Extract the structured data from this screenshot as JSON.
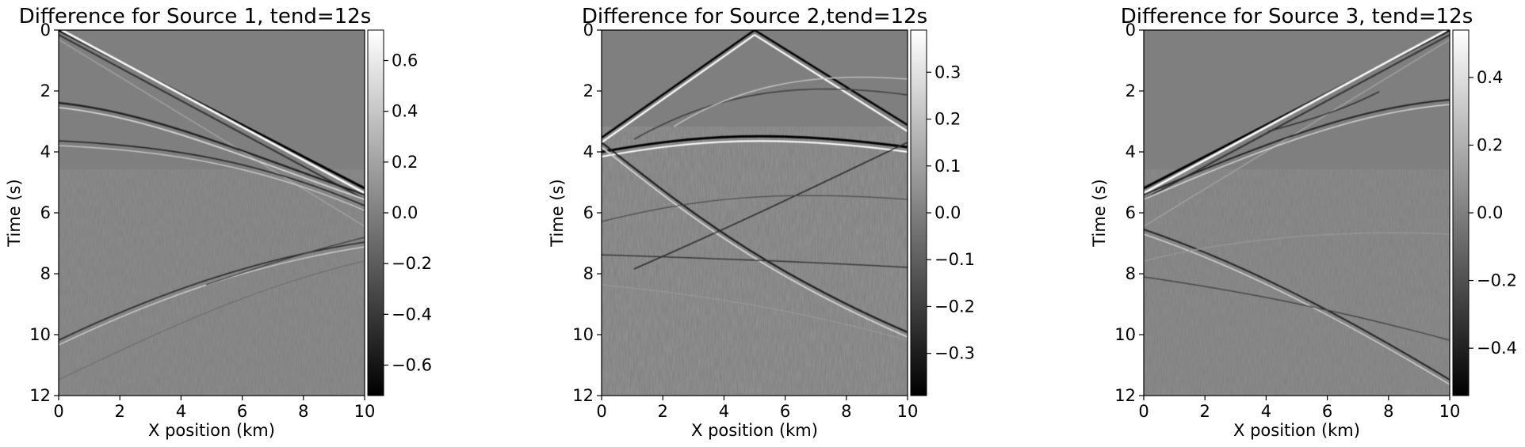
{
  "chart_data": [
    {
      "type": "heatmap",
      "title": "Difference for Source 1, tend=12s",
      "xlabel": "X position (km)",
      "ylabel": "Time (s)",
      "xlim": [
        0,
        10
      ],
      "ylim": [
        12,
        0
      ],
      "xticks": [
        0,
        2,
        4,
        6,
        8,
        10
      ],
      "yticks": [
        0,
        2,
        4,
        6,
        8,
        10,
        12
      ],
      "colormap": "gray",
      "colorbar": {
        "vmin": -0.72,
        "vmax": 0.72,
        "ticks": [
          -0.6,
          -0.4,
          -0.2,
          0.0,
          0.2,
          0.4,
          0.6
        ],
        "tick_labels": [
          "−0.6",
          "−0.4",
          "−0.2",
          "0.0",
          "0.2",
          "0.4",
          "0.6"
        ]
      },
      "source_position_km": 0
    },
    {
      "type": "heatmap",
      "title": "Difference for Source 2,tend=12s",
      "xlabel": "X position (km)",
      "ylabel": "Time (s)",
      "xlim": [
        0,
        10
      ],
      "ylim": [
        12,
        0
      ],
      "xticks": [
        0,
        2,
        4,
        6,
        8,
        10
      ],
      "yticks": [
        0,
        2,
        4,
        6,
        8,
        10,
        12
      ],
      "colormap": "gray",
      "colorbar": {
        "vmin": -0.39,
        "vmax": 0.39,
        "ticks": [
          -0.3,
          -0.2,
          -0.1,
          0.0,
          0.1,
          0.2,
          0.3
        ],
        "tick_labels": [
          "−0.3",
          "−0.2",
          "−0.1",
          "0.0",
          "0.1",
          "0.2",
          "0.3"
        ]
      },
      "source_position_km": 5
    },
    {
      "type": "heatmap",
      "title": "Difference for Source 3, tend=12s",
      "xlabel": "X position (km)",
      "ylabel": "Time (s)",
      "xlim": [
        0,
        10
      ],
      "ylim": [
        12,
        0
      ],
      "xticks": [
        0,
        2,
        4,
        6,
        8,
        10
      ],
      "yticks": [
        0,
        2,
        4,
        6,
        8,
        10,
        12
      ],
      "colormap": "gray",
      "colorbar": {
        "vmin": -0.54,
        "vmax": 0.54,
        "ticks": [
          -0.4,
          -0.2,
          0.0,
          0.2,
          0.4
        ],
        "tick_labels": [
          "−0.4",
          "−0.2",
          "0.0",
          "0.2",
          "0.4"
        ]
      },
      "source_position_km": 10
    }
  ]
}
